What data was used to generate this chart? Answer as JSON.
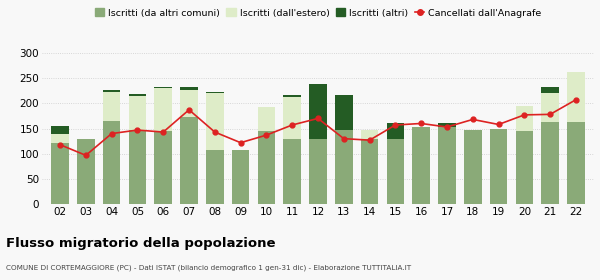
{
  "years": [
    "02",
    "03",
    "04",
    "05",
    "06",
    "07",
    "08",
    "09",
    "10",
    "11",
    "12",
    "13",
    "14",
    "15",
    "16",
    "17",
    "18",
    "19",
    "20",
    "21",
    "22"
  ],
  "iscritti_comuni": [
    122,
    130,
    165,
    147,
    145,
    172,
    108,
    108,
    145,
    130,
    130,
    148,
    130,
    130,
    153,
    153,
    148,
    150,
    145,
    163,
    163
  ],
  "iscritti_estero": [
    18,
    0,
    58,
    68,
    85,
    55,
    112,
    0,
    47,
    83,
    0,
    0,
    18,
    0,
    0,
    0,
    0,
    0,
    50,
    57,
    98
  ],
  "iscritti_altri": [
    15,
    0,
    3,
    3,
    3,
    5,
    3,
    0,
    0,
    3,
    108,
    68,
    0,
    30,
    0,
    8,
    0,
    0,
    0,
    13,
    0
  ],
  "cancellati": [
    118,
    97,
    140,
    147,
    143,
    187,
    143,
    122,
    137,
    157,
    170,
    130,
    127,
    157,
    160,
    153,
    168,
    158,
    177,
    178,
    207
  ],
  "color_comuni": "#8aaa78",
  "color_estero": "#deecc8",
  "color_altri": "#245c24",
  "color_cancellati": "#dd2222",
  "title": "Flusso migratorio della popolazione",
  "subtitle": "COMUNE DI CORTEMAGGIORE (PC) - Dati ISTAT (bilancio demografico 1 gen-31 dic) - Elaborazione TUTTITALIA.IT",
  "legend_labels": [
    "Iscritti (da altri comuni)",
    "Iscritti (dall'estero)",
    "Iscritti (altri)",
    "Cancellati dall'Anagrafe"
  ],
  "ylim": [
    0,
    310
  ],
  "yticks": [
    0,
    50,
    100,
    150,
    200,
    250,
    300
  ],
  "bg_color": "#f8f8f8"
}
